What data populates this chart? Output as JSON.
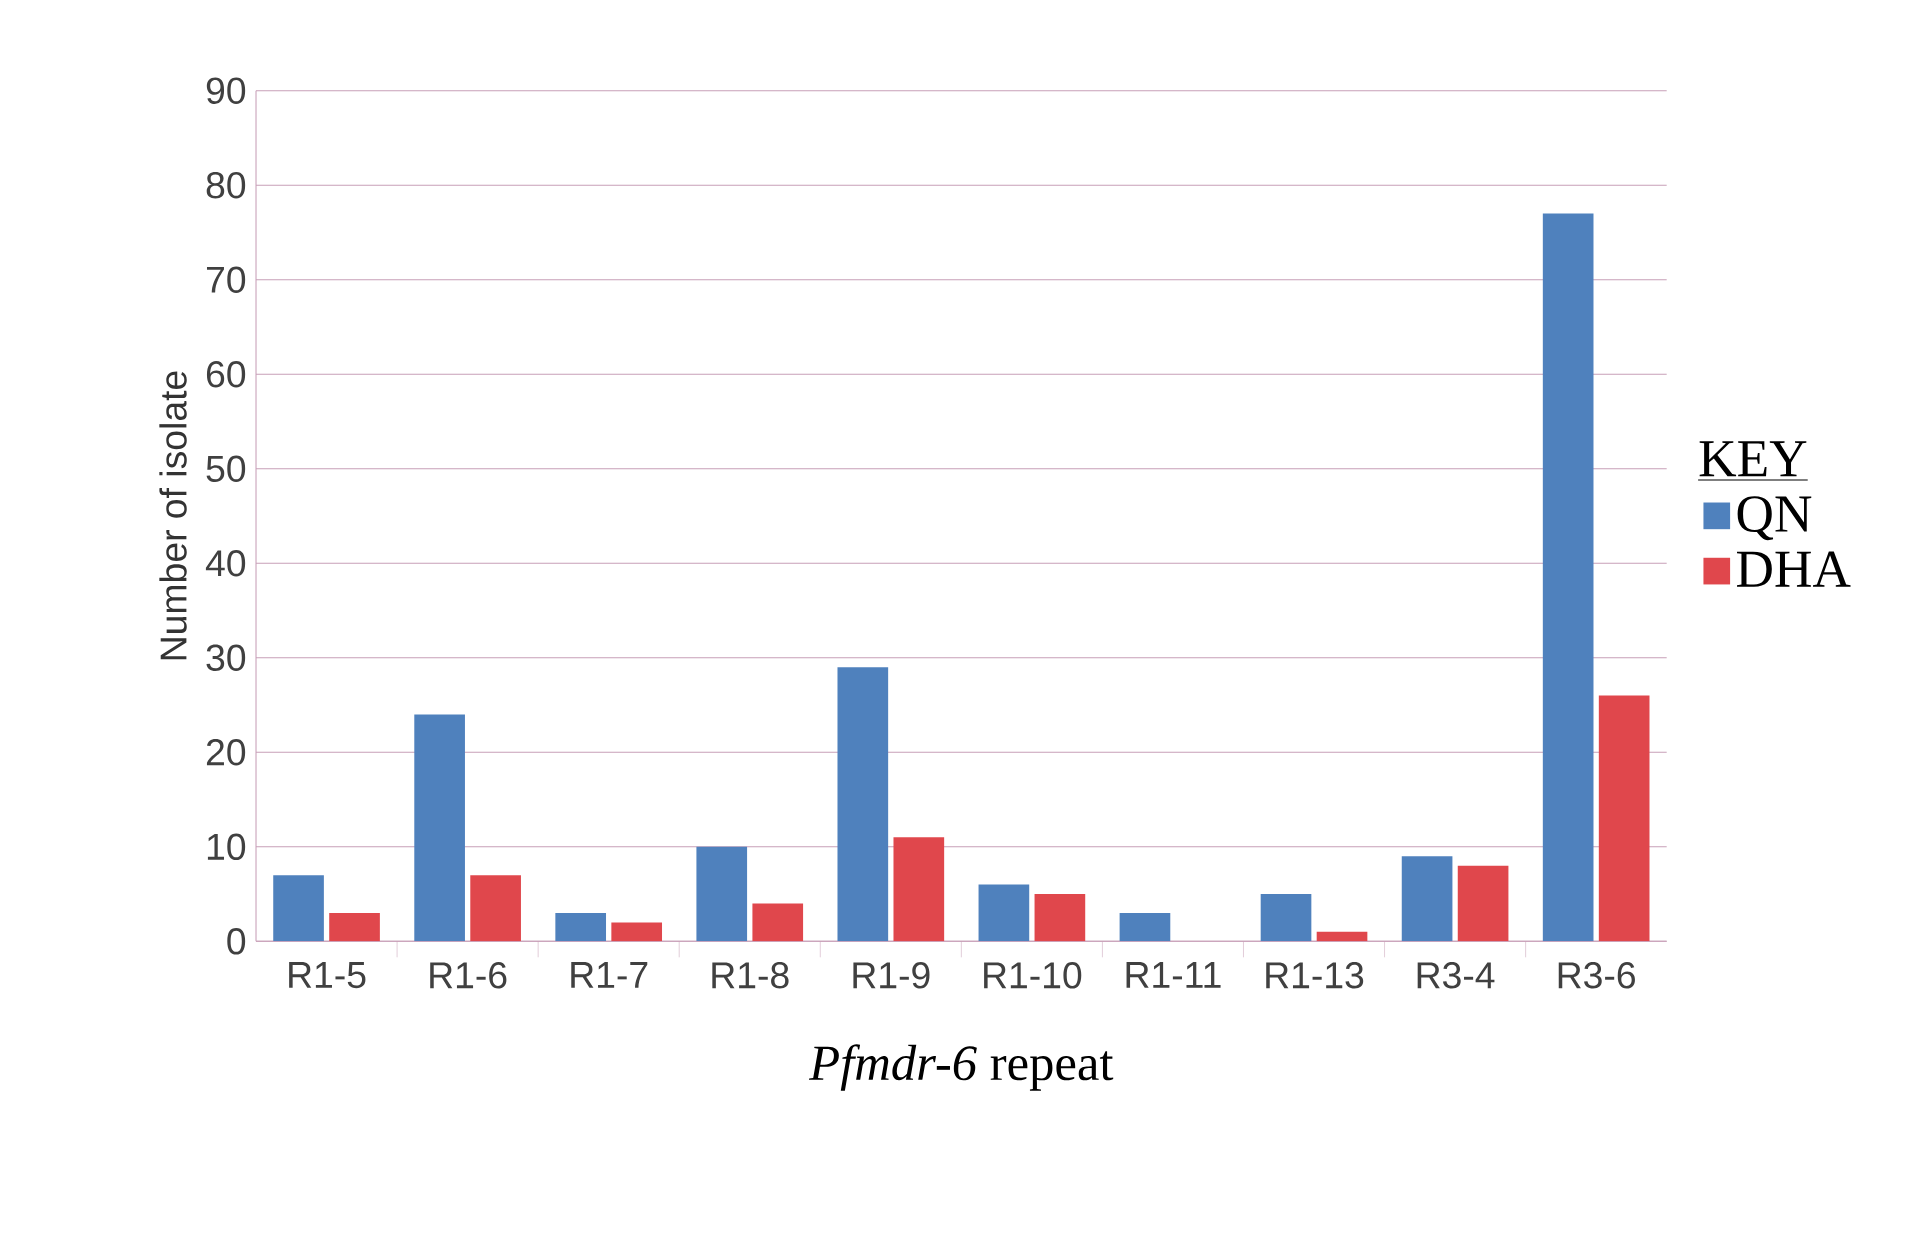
{
  "chart_data": {
    "type": "bar",
    "xlabel": "*Pfmdr-6* repeat",
    "ylabel": "Number of isolate",
    "legend_title": "KEY",
    "categories": [
      "R1-5",
      "R1-6",
      "R1-7",
      "R1-8",
      "R1-9",
      "R1-10",
      "R1-11",
      "R1-13",
      "R3-4",
      "R3-6"
    ],
    "series": [
      {
        "name": "QN",
        "color": "#4f81bd",
        "values": [
          7,
          24,
          3,
          10,
          29,
          6,
          3,
          5,
          9,
          77
        ]
      },
      {
        "name": "DHA",
        "color": "#e0474c",
        "values": [
          3,
          7,
          2,
          4,
          11,
          5,
          0,
          1,
          8,
          26
        ]
      }
    ],
    "ylim": [
      0,
      90
    ],
    "yticks": [
      0,
      10,
      20,
      30,
      40,
      50,
      60,
      70,
      80,
      90
    ],
    "grid": "y",
    "legend": "right"
  }
}
